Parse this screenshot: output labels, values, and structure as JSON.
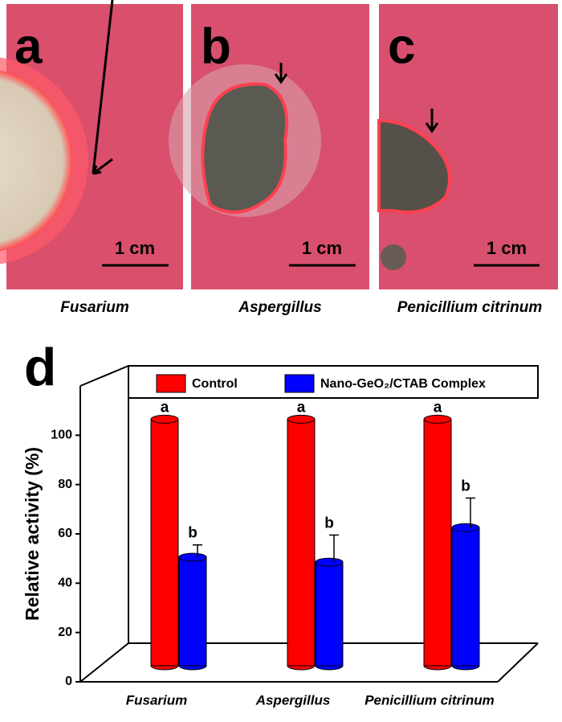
{
  "panels": [
    {
      "letter": "a",
      "scale": "1 cm",
      "caption": "Fusarium"
    },
    {
      "letter": "b",
      "scale": "1 cm",
      "caption": "Aspergillus"
    },
    {
      "letter": "c",
      "scale": "1 cm",
      "caption": "Penicillium citrinum"
    }
  ],
  "chart_data": {
    "type": "bar3d",
    "panel_label": "d",
    "ylabel": "Relative activity (%)",
    "categories": [
      "Fusarium",
      "Aspergillus",
      "Penicillium citrinum"
    ],
    "series": [
      {
        "name": "Control",
        "color": "#ff0000",
        "values": [
          100,
          100,
          100
        ],
        "letters": [
          "a",
          "a",
          "a"
        ]
      },
      {
        "name": "Nano-GeO₂/CTAB Complex",
        "color": "#0000ff",
        "values": [
          44,
          42,
          56
        ],
        "errors": [
          5,
          11,
          12
        ],
        "letters": [
          "b",
          "b",
          "b"
        ]
      }
    ],
    "ylim": [
      0,
      120
    ],
    "yticks": [
      0,
      20,
      40,
      60,
      80,
      100
    ]
  }
}
